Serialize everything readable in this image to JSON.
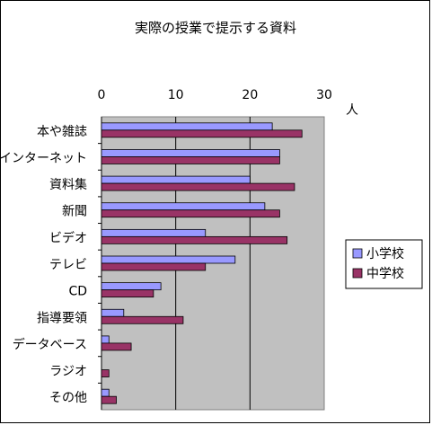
{
  "chart_data": {
    "type": "bar",
    "orientation": "horizontal",
    "title": "実際の授業で提示する資料",
    "unit_label": "人",
    "categories": [
      "本や雑誌",
      "インターネット",
      "資料集",
      "新聞",
      "ビデオ",
      "テレビ",
      "CD",
      "指導要領",
      "データベース",
      "ラジオ",
      "その他"
    ],
    "series": [
      {
        "name": "小学校",
        "color": "#9999ff",
        "values": [
          23,
          24,
          20,
          22,
          14,
          18,
          8,
          3,
          1,
          0,
          1
        ]
      },
      {
        "name": "中学校",
        "color": "#993366",
        "values": [
          27,
          24,
          26,
          24,
          25,
          14,
          7,
          11,
          4,
          1,
          2
        ]
      }
    ],
    "xlim": [
      0,
      30
    ],
    "xticks": [
      0,
      10,
      20,
      30
    ],
    "grid": "vertical major gridlines",
    "plot_background": "#c0c0c0",
    "legend_position": "right"
  }
}
